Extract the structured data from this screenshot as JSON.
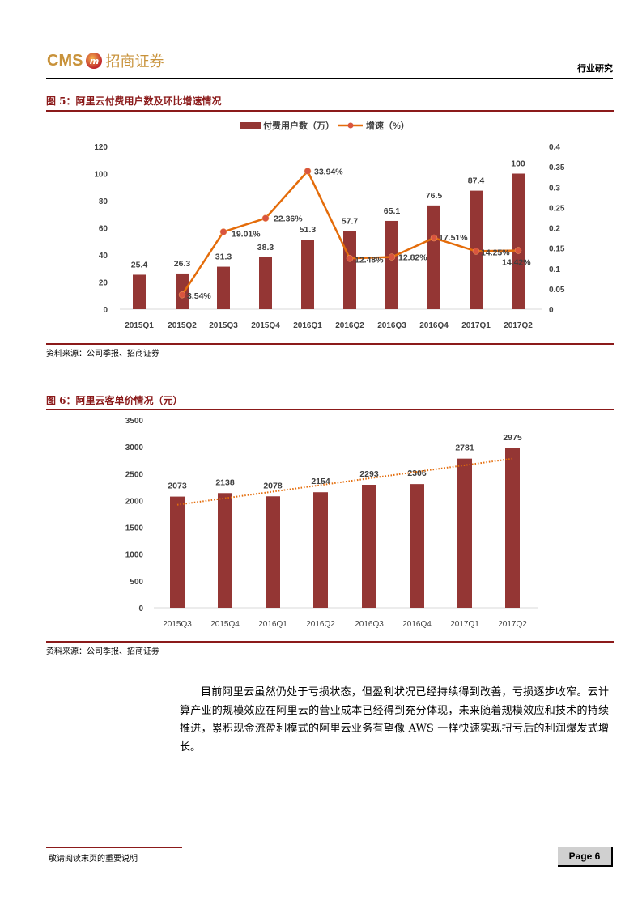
{
  "header": {
    "logo_text": "CMS",
    "logo_badge": "m",
    "logo_cn": "招商证券",
    "section_label": "行业研究"
  },
  "figure5": {
    "title": "图 5：阿里云付费用户数及环比增速情况",
    "source": "资料来源：公司季报、招商证券"
  },
  "figure6": {
    "title": "图 6：阿里云客单价情况（元）",
    "source": "资料来源：公司季报、招商证券"
  },
  "body": {
    "paragraph": "目前阿里云虽然仍处于亏损状态，但盈利状况已经持续得到改善，亏损逐步收窄。云计算产业的规模效应在阿里云的营业成本已经得到充分体现，未来随着规模效应和技术的持续推进，累积现金流盈利模式的阿里云业务有望像 AWS 一样快速实现扭亏后的利润爆发式增长。"
  },
  "footer": {
    "note": "敬请阅读末页的重要说明",
    "page": "Page 6"
  },
  "colors": {
    "bar": "#943634",
    "line": "#e46c0a",
    "marker": "#d9553f",
    "title": "#8b1a1a",
    "logo": "#c8923a"
  },
  "chart_data": [
    {
      "type": "bar+line",
      "title": "图 5：阿里云付费用户数及环比增速情况",
      "categories": [
        "2015Q1",
        "2015Q2",
        "2015Q3",
        "2015Q4",
        "2016Q1",
        "2016Q2",
        "2016Q3",
        "2016Q4",
        "2017Q1",
        "2017Q2"
      ],
      "series": [
        {
          "name": "付费用户数（万）",
          "type": "bar",
          "axis": "left",
          "values": [
            25.4,
            26.3,
            31.3,
            38.3,
            51.3,
            57.7,
            65.1,
            76.5,
            87.4,
            100
          ],
          "labels": [
            "25.4",
            "26.3",
            "31.3",
            "38.3",
            "51.3",
            "57.7",
            "65.1",
            "76.5",
            "87.4",
            "100"
          ]
        },
        {
          "name": "增速（%）",
          "type": "line",
          "axis": "right",
          "values": [
            null,
            0.0354,
            0.1901,
            0.2236,
            0.3394,
            0.1248,
            0.1282,
            0.1751,
            0.1425,
            0.1442
          ],
          "labels": [
            null,
            "3.54%",
            "19.01%",
            "22.36%",
            "33.94%",
            "12.48%",
            "12.82%",
            "17.51%",
            "14.25%",
            "14.42%"
          ]
        }
      ],
      "left_axis": {
        "ticks": [
          "0",
          "20",
          "40",
          "60",
          "80",
          "100",
          "120"
        ],
        "ylim": [
          0,
          120
        ]
      },
      "right_axis": {
        "ticks": [
          "0",
          "0.05",
          "0.1",
          "0.15",
          "0.2",
          "0.25",
          "0.3",
          "0.35",
          "0.4"
        ],
        "ylim": [
          0,
          0.4
        ]
      },
      "legend_position": "top",
      "grid": false
    },
    {
      "type": "bar",
      "title": "图 6：阿里云客单价情况（元）",
      "categories": [
        "2015Q3",
        "2015Q4",
        "2016Q1",
        "2016Q2",
        "2016Q3",
        "2016Q4",
        "2017Q1",
        "2017Q2"
      ],
      "values": [
        2073,
        2138,
        2078,
        2154,
        2293,
        2306,
        2781,
        2975
      ],
      "labels": [
        "2073",
        "2138",
        "2078",
        "2154",
        "2293",
        "2306",
        "2781",
        "2975"
      ],
      "trendline": {
        "type": "linear",
        "style": "dotted",
        "start": 1920,
        "end": 2780
      },
      "yaxis": {
        "ticks": [
          "0",
          "500",
          "1000",
          "1500",
          "2000",
          "2500",
          "3000",
          "3500"
        ],
        "ylim": [
          0,
          3500
        ]
      },
      "grid": false
    }
  ]
}
